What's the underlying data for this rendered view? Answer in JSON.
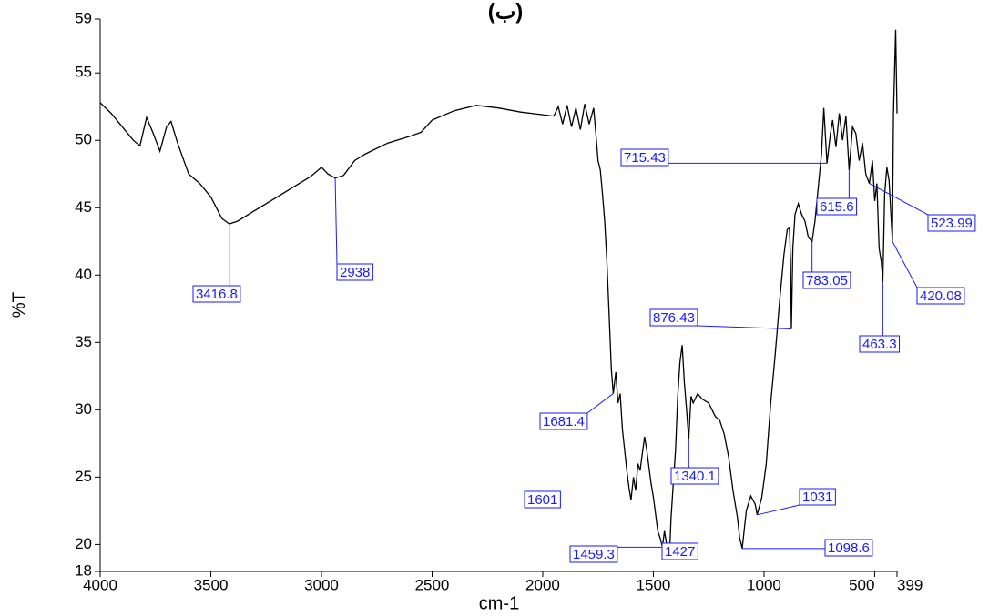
{
  "chart_data": {
    "type": "line",
    "title": "(ب)",
    "x_label": "cm-1",
    "y_label": "%T",
    "xlim": [
      4000,
      399
    ],
    "ylim": [
      18,
      59
    ],
    "xticks": [
      4000,
      3500,
      3000,
      2500,
      2000,
      1500,
      1000,
      500,
      399
    ],
    "yticks": [
      18,
      20,
      25,
      30,
      35,
      40,
      45,
      50,
      55,
      59
    ],
    "color": "#000000",
    "annotation_color": "#1a1aff",
    "x": [
      4000,
      3950,
      3900,
      3850,
      3820,
      3790,
      3760,
      3730,
      3700,
      3680,
      3650,
      3600,
      3550,
      3500,
      3450,
      3416.8,
      3380,
      3300,
      3200,
      3100,
      3050,
      3000,
      2970,
      2938,
      2900,
      2850,
      2800,
      2700,
      2600,
      2550,
      2500,
      2400,
      2300,
      2200,
      2100,
      2000,
      1950,
      1930,
      1910,
      1890,
      1870,
      1850,
      1830,
      1810,
      1790,
      1770,
      1760,
      1750,
      1740,
      1730,
      1720,
      1710,
      1700,
      1690,
      1681.4,
      1670,
      1660,
      1650,
      1640,
      1630,
      1620,
      1610,
      1601,
      1590,
      1580,
      1570,
      1560,
      1540,
      1530,
      1510,
      1500,
      1480,
      1470,
      1459.3,
      1450,
      1440,
      1427,
      1420,
      1410,
      1400,
      1390,
      1380,
      1370,
      1360,
      1350,
      1340.1,
      1330,
      1320,
      1300,
      1280,
      1250,
      1220,
      1200,
      1180,
      1160,
      1140,
      1120,
      1110,
      1098.6,
      1080,
      1060,
      1040,
      1031,
      1010,
      990,
      970,
      950,
      930,
      910,
      895,
      885,
      880,
      876.43,
      870,
      860,
      845,
      830,
      815,
      800,
      783.05,
      770,
      755,
      740,
      730,
      715.43,
      700,
      690,
      675,
      660,
      645,
      630,
      615.6,
      600,
      585,
      570,
      555,
      540,
      523.99,
      510,
      500,
      490,
      480,
      470,
      463.3,
      455,
      445,
      435,
      420.08,
      415,
      405,
      399
    ],
    "values": [
      52.8,
      52.0,
      51.0,
      50.0,
      49.6,
      51.7,
      50.5,
      49.2,
      51.0,
      51.4,
      49.8,
      47.5,
      46.8,
      45.8,
      44.2,
      43.8,
      44.0,
      44.8,
      45.8,
      46.8,
      47.3,
      48.0,
      47.5,
      47.2,
      47.4,
      48.5,
      49.0,
      49.8,
      50.3,
      50.6,
      51.5,
      52.2,
      52.6,
      52.4,
      52.1,
      51.9,
      51.8,
      52.5,
      51.2,
      52.6,
      51.0,
      52.4,
      50.8,
      52.7,
      51.2,
      52.4,
      50.5,
      48.5,
      47.8,
      46.0,
      44.0,
      41.0,
      37.0,
      33.0,
      31.2,
      32.8,
      30.5,
      31.2,
      28.5,
      27.0,
      25.5,
      24.2,
      23.3,
      25.0,
      24.0,
      26.0,
      25.5,
      28.0,
      27.0,
      24.5,
      23.5,
      21.0,
      20.5,
      19.8,
      21.0,
      20.0,
      19.3,
      22.0,
      24.5,
      27.0,
      31.0,
      33.5,
      34.8,
      32.0,
      30.0,
      27.8,
      31.0,
      30.5,
      31.2,
      30.8,
      30.5,
      29.5,
      29.2,
      28.2,
      26.5,
      24.0,
      22.0,
      20.5,
      19.7,
      22.5,
      23.6,
      23.0,
      22.2,
      23.5,
      26.0,
      30.5,
      34.0,
      38.0,
      41.5,
      43.4,
      43.5,
      41.0,
      36.0,
      42.0,
      44.5,
      45.3,
      44.5,
      44.0,
      42.8,
      42.5,
      44.0,
      46.5,
      49.0,
      52.4,
      48.3,
      50.5,
      51.5,
      49.5,
      52.0,
      50.0,
      51.8,
      47.8,
      51.0,
      50.5,
      48.5,
      49.8,
      47.5,
      46.8,
      48.5,
      45.5,
      46.8,
      42.0,
      41.0,
      39.5,
      46.0,
      48.0,
      47.0,
      42.5,
      52.0,
      58.2,
      52.0
    ],
    "annotations": [
      {
        "label": "3416.8",
        "x": 3416.8,
        "y": 43.8
      },
      {
        "label": "2938",
        "x": 2938,
        "y": 47.2
      },
      {
        "label": "1681.4",
        "x": 1681.4,
        "y": 31.2
      },
      {
        "label": "1601",
        "x": 1601,
        "y": 23.3
      },
      {
        "label": "1459.3",
        "x": 1459.3,
        "y": 19.8
      },
      {
        "label": "1427",
        "x": 1427,
        "y": 19.3
      },
      {
        "label": "1340.1",
        "x": 1340.1,
        "y": 27.8
      },
      {
        "label": "1098.6",
        "x": 1098.6,
        "y": 19.7
      },
      {
        "label": "1031",
        "x": 1031,
        "y": 22.2
      },
      {
        "label": "876.43",
        "x": 876.43,
        "y": 36.0
      },
      {
        "label": "783.05",
        "x": 783.05,
        "y": 42.5
      },
      {
        "label": "715.43",
        "x": 715.43,
        "y": 48.3
      },
      {
        "label": "615.6",
        "x": 615.6,
        "y": 47.8
      },
      {
        "label": "523.99",
        "x": 523.99,
        "y": 46.8
      },
      {
        "label": "463.3",
        "x": 463.3,
        "y": 39.5
      },
      {
        "label": "420.08",
        "x": 420.08,
        "y": 42.5
      }
    ]
  }
}
